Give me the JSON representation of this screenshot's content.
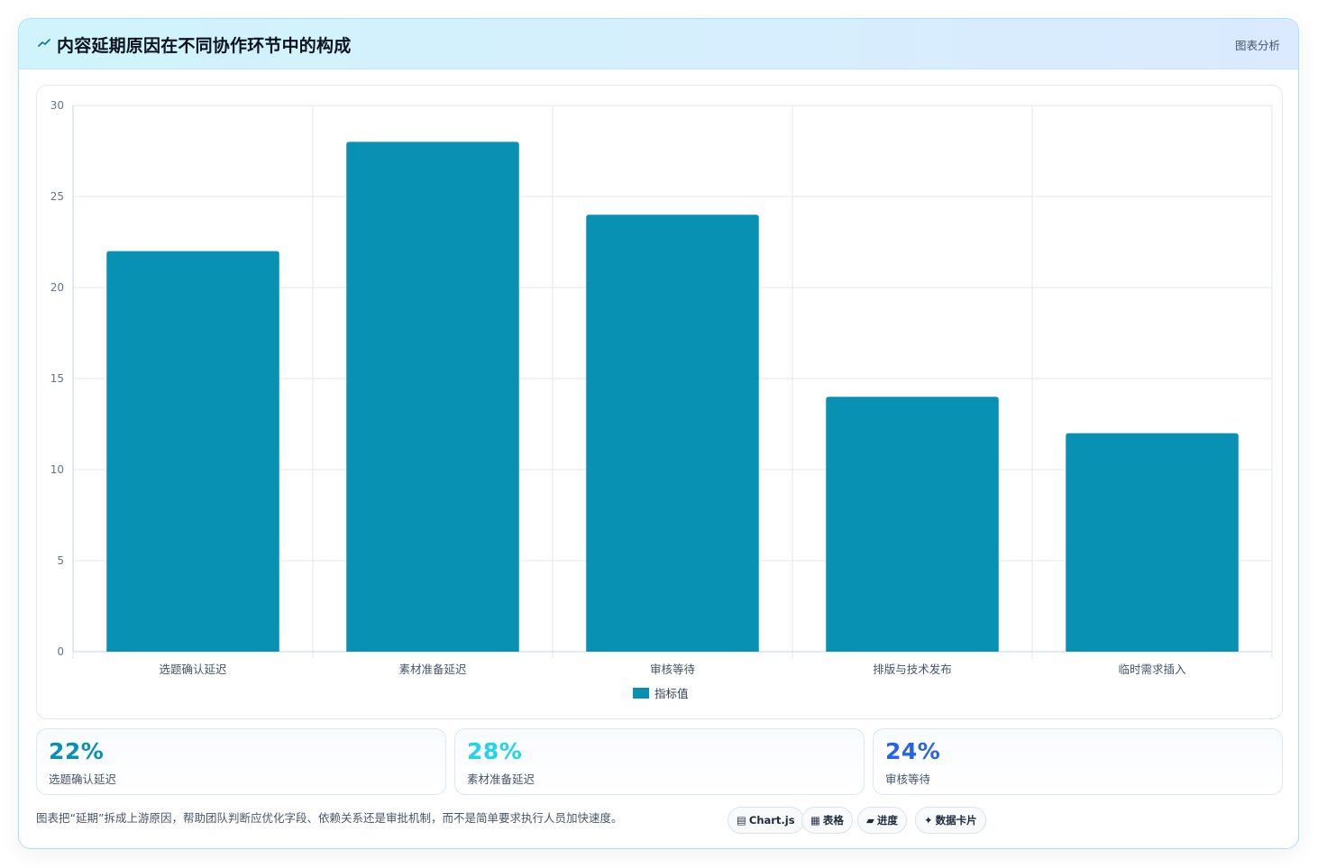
{
  "header": {
    "title": "内容延期原因在不同协作环节中的构成",
    "tag": "图表分析",
    "logo_icon": "chart-sparkline-icon"
  },
  "chart_data": {
    "type": "bar",
    "categories": [
      "选题确认延迟",
      "素材准备延迟",
      "审核等待",
      "排版与技术发布",
      "临时需求插入"
    ],
    "series": [
      {
        "name": "指标值",
        "values": [
          22,
          28,
          24,
          14,
          12
        ],
        "color": "#0891b2"
      }
    ],
    "ylim": [
      0,
      30
    ],
    "yticks": [
      0,
      5,
      10,
      15,
      20,
      25,
      30
    ],
    "xlabel": "",
    "ylabel": "",
    "grid": true,
    "legend_position": "bottom"
  },
  "stats": [
    {
      "value": "22%",
      "label": "选题确认延迟",
      "color": "#0891b2"
    },
    {
      "value": "28%",
      "label": "素材准备延迟",
      "color": "#22d3ee"
    },
    {
      "value": "24%",
      "label": "审核等待",
      "color": "#2563eb"
    }
  ],
  "footer": {
    "note": "图表把“延期”拆成上游原因，帮助团队判断应优化字段、依赖关系还是审批机制，而不是简单要求执行人员加快速度。"
  },
  "pills": [
    {
      "icon": "▤",
      "icon_name": "chart-library-icon",
      "label": "Chart.js"
    },
    {
      "icon": "▦",
      "icon_name": "table-icon",
      "label": "表格"
    },
    {
      "icon": "▰",
      "icon_name": "progress-icon",
      "label": "进度"
    },
    {
      "icon": "✦",
      "icon_name": "data-card-icon",
      "label": "数据卡片"
    }
  ]
}
